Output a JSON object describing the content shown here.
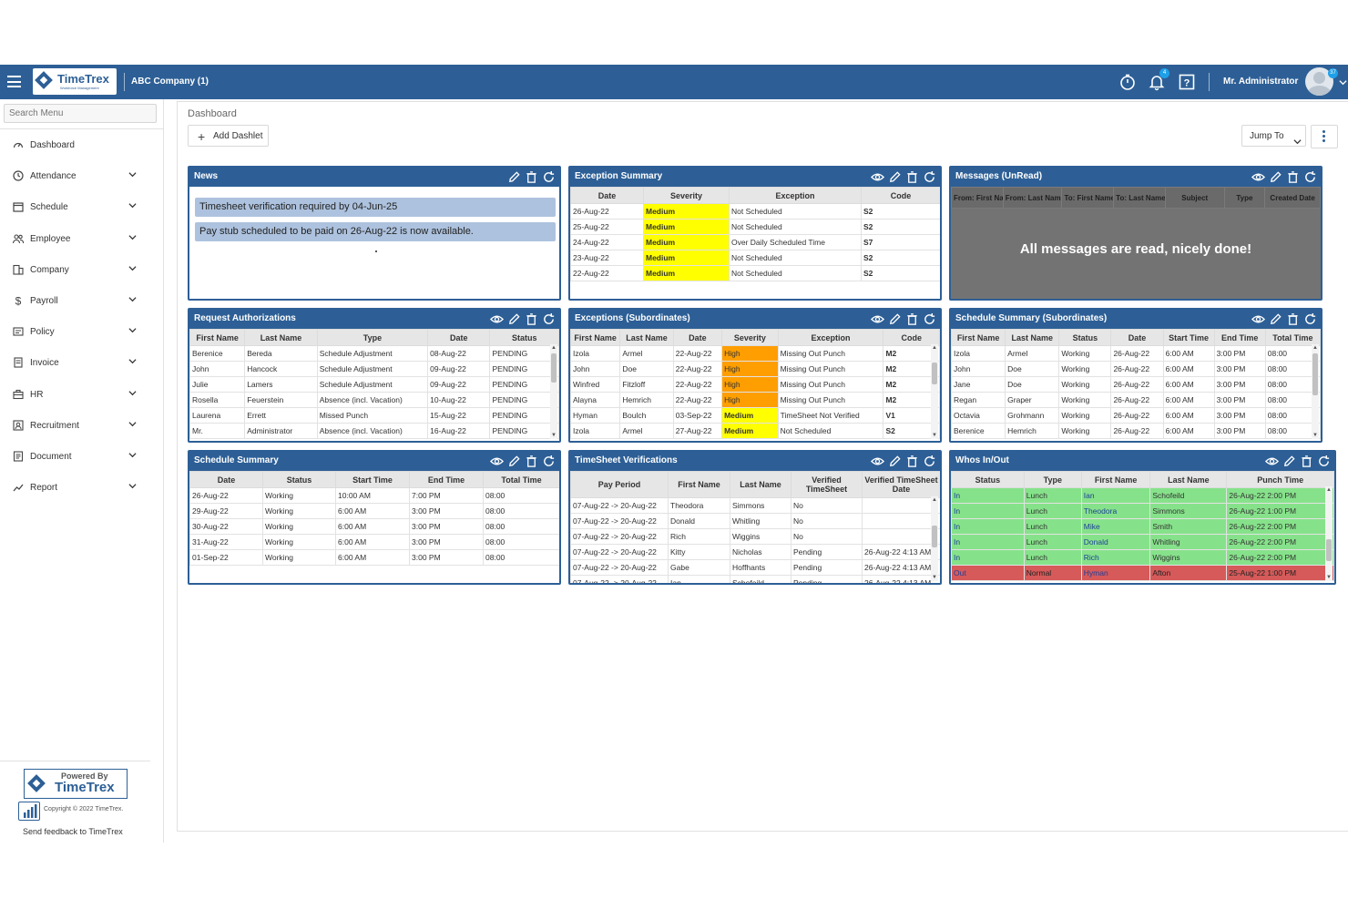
{
  "header": {
    "company": "ABC Company (1)",
    "user": "Mr. Administrator",
    "notification_count": "4",
    "avatar_badge": "37",
    "logo_text": "TimeTrex",
    "logo_subtext": "Workforce Management"
  },
  "sidebar": {
    "search_placeholder": "Search Menu",
    "items": [
      {
        "label": "Dashboard",
        "icon": "dashboard-icon",
        "expandable": false
      },
      {
        "label": "Attendance",
        "icon": "clock-icon",
        "expandable": true
      },
      {
        "label": "Schedule",
        "icon": "calendar-icon",
        "expandable": true
      },
      {
        "label": "Employee",
        "icon": "people-icon",
        "expandable": true
      },
      {
        "label": "Company",
        "icon": "building-icon",
        "expandable": true
      },
      {
        "label": "Payroll",
        "icon": "dollar-icon",
        "expandable": true
      },
      {
        "label": "Policy",
        "icon": "policy-icon",
        "expandable": true
      },
      {
        "label": "Invoice",
        "icon": "invoice-icon",
        "expandable": true
      },
      {
        "label": "HR",
        "icon": "briefcase-icon",
        "expandable": true
      },
      {
        "label": "Recruitment",
        "icon": "recruitment-icon",
        "expandable": true
      },
      {
        "label": "Document",
        "icon": "document-icon",
        "expandable": true
      },
      {
        "label": "Report",
        "icon": "chart-line-icon",
        "expandable": true
      }
    ],
    "powered_by": "Powered By",
    "powered_brand": "TimeTrex",
    "copyright": "Copyright © 2022 TimeTrex.",
    "feedback": "Send feedback to TimeTrex"
  },
  "main": {
    "breadcrumb": "Dashboard",
    "add_dashlet": "Add Dashlet",
    "jump_to": "Jump To"
  },
  "news": {
    "title": "News",
    "items": [
      "Timesheet verification required by 04-Jun-25",
      "Pay stub scheduled to be paid on 26-Aug-22 is now available."
    ]
  },
  "exception_summary": {
    "title": "Exception Summary",
    "columns": [
      "Date",
      "Severity",
      "Exception",
      "Code"
    ],
    "rows": [
      [
        "26-Aug-22",
        "Medium",
        "Not Scheduled",
        "S2"
      ],
      [
        "25-Aug-22",
        "Medium",
        "Not Scheduled",
        "S2"
      ],
      [
        "24-Aug-22",
        "Medium",
        "Over Daily Scheduled Time",
        "S7"
      ],
      [
        "23-Aug-22",
        "Medium",
        "Not Scheduled",
        "S2"
      ],
      [
        "22-Aug-22",
        "Medium",
        "Not Scheduled",
        "S2"
      ]
    ]
  },
  "messages": {
    "title": "Messages (UnRead)",
    "columns": [
      "From: First Name",
      "From: Last Name",
      "To: First Name",
      "To: Last Name",
      "Subject",
      "Type",
      "Created Date"
    ],
    "empty_text": "All messages are read, nicely done!"
  },
  "request_authorizations": {
    "title": "Request Authorizations",
    "columns": [
      "First Name",
      "Last Name",
      "Type",
      "Date",
      "Status"
    ],
    "rows": [
      [
        "Berenice",
        "Bereda",
        "Schedule Adjustment",
        "08-Aug-22",
        "PENDING"
      ],
      [
        "John",
        "Hancock",
        "Schedule Adjustment",
        "09-Aug-22",
        "PENDING"
      ],
      [
        "Julie",
        "Lamers",
        "Schedule Adjustment",
        "09-Aug-22",
        "PENDING"
      ],
      [
        "Rosella",
        "Feuerstein",
        "Absence (incl. Vacation)",
        "10-Aug-22",
        "PENDING"
      ],
      [
        "Laurena",
        "Errett",
        "Missed Punch",
        "15-Aug-22",
        "PENDING"
      ],
      [
        "Mr.",
        "Administrator",
        "Absence (incl. Vacation)",
        "16-Aug-22",
        "PENDING"
      ]
    ]
  },
  "exceptions_subordinates": {
    "title": "Exceptions (Subordinates)",
    "columns": [
      "First Name",
      "Last Name",
      "Date",
      "Severity",
      "Exception",
      "Code"
    ],
    "rows": [
      [
        "Izola",
        "Armel",
        "22-Aug-22",
        "High",
        "Missing Out Punch",
        "M2"
      ],
      [
        "John",
        "Doe",
        "22-Aug-22",
        "High",
        "Missing Out Punch",
        "M2"
      ],
      [
        "Winfred",
        "Fitzloff",
        "22-Aug-22",
        "High",
        "Missing Out Punch",
        "M2"
      ],
      [
        "Alayna",
        "Hemrich",
        "22-Aug-22",
        "High",
        "Missing Out Punch",
        "M2"
      ],
      [
        "Hyman",
        "Boulch",
        "03-Sep-22",
        "Medium",
        "TimeSheet Not Verified",
        "V1"
      ],
      [
        "Izola",
        "Armel",
        "27-Aug-22",
        "Medium",
        "Not Scheduled",
        "S2"
      ]
    ]
  },
  "schedule_summary_subordinates": {
    "title": "Schedule Summary (Subordinates)",
    "columns": [
      "First Name",
      "Last Name",
      "Status",
      "Date",
      "Start Time",
      "End Time",
      "Total Time"
    ],
    "rows": [
      [
        "Izola",
        "Armel",
        "Working",
        "26-Aug-22",
        "6:00 AM",
        "3:00 PM",
        "08:00"
      ],
      [
        "John",
        "Doe",
        "Working",
        "26-Aug-22",
        "6:00 AM",
        "3:00 PM",
        "08:00"
      ],
      [
        "Jane",
        "Doe",
        "Working",
        "26-Aug-22",
        "6:00 AM",
        "3:00 PM",
        "08:00"
      ],
      [
        "Regan",
        "Graper",
        "Working",
        "26-Aug-22",
        "6:00 AM",
        "3:00 PM",
        "08:00"
      ],
      [
        "Octavia",
        "Grohmann",
        "Working",
        "26-Aug-22",
        "6:00 AM",
        "3:00 PM",
        "08:00"
      ],
      [
        "Berenice",
        "Hemrich",
        "Working",
        "26-Aug-22",
        "6:00 AM",
        "3:00 PM",
        "08:00"
      ]
    ]
  },
  "schedule_summary": {
    "title": "Schedule Summary",
    "columns": [
      "Date",
      "Status",
      "Start Time",
      "End Time",
      "Total Time"
    ],
    "rows": [
      [
        "26-Aug-22",
        "Working",
        "10:00 AM",
        "7:00 PM",
        "08:00"
      ],
      [
        "29-Aug-22",
        "Working",
        "6:00 AM",
        "3:00 PM",
        "08:00"
      ],
      [
        "30-Aug-22",
        "Working",
        "6:00 AM",
        "3:00 PM",
        "08:00"
      ],
      [
        "31-Aug-22",
        "Working",
        "6:00 AM",
        "3:00 PM",
        "08:00"
      ],
      [
        "01-Sep-22",
        "Working",
        "6:00 AM",
        "3:00 PM",
        "08:00"
      ]
    ]
  },
  "timesheet_verifications": {
    "title": "TimeSheet Verifications",
    "columns": [
      "Pay Period",
      "First Name",
      "Last Name",
      "Verified TimeSheet",
      "Verified TimeSheet Date"
    ],
    "rows": [
      [
        "07-Aug-22 -> 20-Aug-22",
        "Theodora",
        "Simmons",
        "No",
        ""
      ],
      [
        "07-Aug-22 -> 20-Aug-22",
        "Donald",
        "Whitling",
        "No",
        ""
      ],
      [
        "07-Aug-22 -> 20-Aug-22",
        "Rich",
        "Wiggins",
        "No",
        ""
      ],
      [
        "07-Aug-22 -> 20-Aug-22",
        "Kitty",
        "Nicholas",
        "Pending",
        "26-Aug-22 4:13 AM"
      ],
      [
        "07-Aug-22 -> 20-Aug-22",
        "Gabe",
        "Hoffhants",
        "Pending",
        "26-Aug-22 4:13 AM"
      ],
      [
        "07-Aug-22 -> 20-Aug-22",
        "Ian",
        "Schofeild",
        "Pending",
        "26-Aug-22 4:13 AM"
      ]
    ]
  },
  "whos_in_out": {
    "title": "Whos In/Out",
    "columns": [
      "Status",
      "Type",
      "First Name",
      "Last Name",
      "Punch Time"
    ],
    "rows": [
      [
        "In",
        "Lunch",
        "Ian",
        "Schofeild",
        "26-Aug-22 2:00 PM",
        "in"
      ],
      [
        "In",
        "Lunch",
        "Theodora",
        "Simmons",
        "26-Aug-22 1:00 PM",
        "in"
      ],
      [
        "In",
        "Lunch",
        "Mike",
        "Smith",
        "26-Aug-22 2:00 PM",
        "in"
      ],
      [
        "In",
        "Lunch",
        "Donald",
        "Whitling",
        "26-Aug-22 2:00 PM",
        "in"
      ],
      [
        "In",
        "Lunch",
        "Rich",
        "Wiggins",
        "26-Aug-22 2:00 PM",
        "in"
      ],
      [
        "Out",
        "Normal",
        "Hyman",
        "Afton",
        "25-Aug-22 1:00 PM",
        "out"
      ]
    ]
  },
  "colors": {
    "brand": "#2d5f96",
    "medium": "#ffff00",
    "high": "#ff9e00",
    "in": "#86e28a",
    "out": "#d65a5a"
  }
}
